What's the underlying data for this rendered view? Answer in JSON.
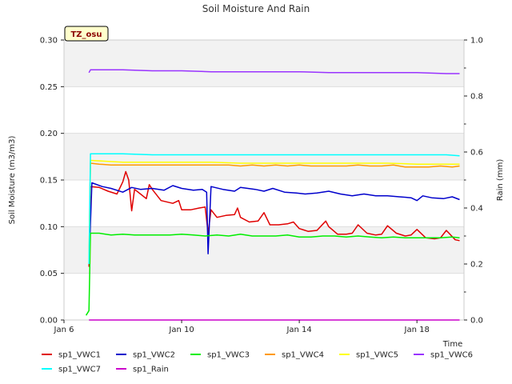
{
  "chart_data": {
    "type": "line",
    "title": "Soil Moisture And Rain",
    "badge": "TZ_osu",
    "xlabel": "Time",
    "ylabel": "Soil Moisture (m3/m3)",
    "y2label": "Rain (mm)",
    "xlim": [
      6,
      19.6
    ],
    "ylim": [
      0,
      0.3
    ],
    "y2lim": [
      0,
      1.0
    ],
    "x_ticks": [
      {
        "value": 6,
        "label": "Jan 6"
      },
      {
        "value": 10,
        "label": "Jan 10"
      },
      {
        "value": 14,
        "label": "Jan 14"
      },
      {
        "value": 18,
        "label": "Jan 18"
      }
    ],
    "y_ticks": [
      {
        "value": 0.0,
        "label": "0.00"
      },
      {
        "value": 0.05,
        "label": "0.05"
      },
      {
        "value": 0.1,
        "label": "0.10"
      },
      {
        "value": 0.15,
        "label": "0.15"
      },
      {
        "value": 0.2,
        "label": "0.20"
      },
      {
        "value": 0.25,
        "label": "0.25"
      },
      {
        "value": 0.3,
        "label": "0.30"
      }
    ],
    "y2_ticks": [
      {
        "value": 0.0,
        "label": "0.0"
      },
      {
        "value": 0.2,
        "label": "0.2"
      },
      {
        "value": 0.4,
        "label": "0.4"
      },
      {
        "value": 0.6,
        "label": "0.6"
      },
      {
        "value": 0.8,
        "label": "0.8"
      },
      {
        "value": 1.0,
        "label": "1.0"
      }
    ],
    "grid": true,
    "legend_position": "bottom",
    "series": [
      {
        "name": "sp1_VWC1",
        "color": "#e00000",
        "axis": "left",
        "x": [
          6.85,
          6.9,
          7.2,
          7.5,
          7.8,
          8.0,
          8.1,
          8.2,
          8.3,
          8.4,
          8.6,
          8.8,
          8.9,
          9.0,
          9.3,
          9.7,
          9.9,
          10.0,
          10.3,
          10.6,
          10.8,
          10.9,
          11.0,
          11.2,
          11.5,
          11.8,
          11.9,
          12.0,
          12.3,
          12.6,
          12.8,
          13.0,
          13.3,
          13.6,
          13.8,
          14.0,
          14.3,
          14.6,
          14.9,
          15.0,
          15.3,
          15.6,
          15.8,
          16.0,
          16.3,
          16.6,
          16.8,
          17.0,
          17.3,
          17.6,
          17.8,
          18.0,
          18.3,
          18.6,
          18.8,
          19.0,
          19.3,
          19.45
        ],
        "y": [
          0.057,
          0.143,
          0.142,
          0.138,
          0.135,
          0.148,
          0.159,
          0.15,
          0.117,
          0.14,
          0.135,
          0.13,
          0.145,
          0.14,
          0.128,
          0.125,
          0.128,
          0.118,
          0.118,
          0.12,
          0.121,
          0.093,
          0.118,
          0.11,
          0.112,
          0.113,
          0.12,
          0.11,
          0.105,
          0.106,
          0.115,
          0.102,
          0.102,
          0.103,
          0.105,
          0.098,
          0.095,
          0.096,
          0.106,
          0.1,
          0.092,
          0.092,
          0.093,
          0.102,
          0.093,
          0.091,
          0.092,
          0.101,
          0.093,
          0.09,
          0.091,
          0.097,
          0.088,
          0.087,
          0.088,
          0.096,
          0.086,
          0.085
        ]
      },
      {
        "name": "sp1_VWC2",
        "color": "#0000cc",
        "axis": "left",
        "x": [
          6.85,
          6.95,
          7.3,
          7.6,
          8.0,
          8.3,
          8.6,
          9.0,
          9.4,
          9.7,
          10.0,
          10.4,
          10.7,
          10.85,
          10.9,
          11.0,
          11.4,
          11.8,
          12.0,
          12.5,
          12.8,
          13.1,
          13.5,
          13.9,
          14.2,
          14.6,
          15.0,
          15.4,
          15.8,
          16.2,
          16.6,
          17.0,
          17.4,
          17.8,
          18.0,
          18.2,
          18.5,
          18.9,
          19.2,
          19.45
        ],
        "y": [
          0.06,
          0.147,
          0.143,
          0.141,
          0.137,
          0.142,
          0.14,
          0.141,
          0.139,
          0.144,
          0.141,
          0.139,
          0.14,
          0.137,
          0.071,
          0.143,
          0.14,
          0.138,
          0.142,
          0.14,
          0.138,
          0.141,
          0.137,
          0.136,
          0.135,
          0.136,
          0.138,
          0.135,
          0.133,
          0.135,
          0.133,
          0.133,
          0.132,
          0.131,
          0.128,
          0.133,
          0.131,
          0.13,
          0.132,
          0.129
        ]
      },
      {
        "name": "sp1_VWC3",
        "color": "#00ee00",
        "axis": "left",
        "x": [
          6.75,
          6.85,
          6.9,
          7.2,
          7.6,
          8.0,
          8.4,
          8.8,
          9.2,
          9.6,
          10.0,
          10.4,
          10.8,
          11.2,
          11.6,
          12.0,
          12.4,
          12.8,
          13.2,
          13.6,
          14.0,
          14.4,
          14.8,
          15.2,
          15.6,
          16.0,
          16.4,
          16.8,
          17.2,
          17.6,
          18.0,
          18.4,
          18.8,
          19.2,
          19.45
        ],
        "y": [
          0.005,
          0.01,
          0.093,
          0.093,
          0.091,
          0.092,
          0.091,
          0.091,
          0.091,
          0.091,
          0.092,
          0.091,
          0.09,
          0.091,
          0.09,
          0.092,
          0.09,
          0.09,
          0.09,
          0.091,
          0.089,
          0.089,
          0.09,
          0.09,
          0.089,
          0.09,
          0.089,
          0.088,
          0.089,
          0.088,
          0.088,
          0.088,
          0.088,
          0.089,
          0.088
        ]
      },
      {
        "name": "sp1_VWC4",
        "color": "#ff9900",
        "axis": "left",
        "x": [
          6.85,
          6.9,
          7.2,
          7.6,
          8.0,
          8.4,
          8.8,
          9.2,
          9.6,
          10.0,
          10.4,
          10.8,
          11.2,
          11.6,
          12.0,
          12.4,
          12.8,
          13.2,
          13.6,
          14.0,
          14.4,
          14.8,
          15.2,
          15.6,
          16.0,
          16.4,
          16.8,
          17.2,
          17.6,
          18.0,
          18.4,
          18.8,
          19.2,
          19.45
        ],
        "y": [
          0.06,
          0.168,
          0.167,
          0.166,
          0.166,
          0.166,
          0.166,
          0.166,
          0.166,
          0.166,
          0.166,
          0.166,
          0.166,
          0.166,
          0.165,
          0.166,
          0.165,
          0.166,
          0.165,
          0.166,
          0.165,
          0.165,
          0.165,
          0.165,
          0.166,
          0.165,
          0.165,
          0.166,
          0.164,
          0.164,
          0.164,
          0.165,
          0.164,
          0.165
        ]
      },
      {
        "name": "sp1_VWC5",
        "color": "#ffff00",
        "axis": "left",
        "x": [
          6.85,
          6.9,
          7.5,
          8.0,
          9.0,
          10.0,
          11.0,
          12.0,
          13.0,
          14.0,
          15.0,
          16.0,
          17.0,
          18.0,
          19.0,
          19.45
        ],
        "y": [
          0.062,
          0.171,
          0.17,
          0.169,
          0.169,
          0.169,
          0.169,
          0.168,
          0.168,
          0.168,
          0.168,
          0.168,
          0.168,
          0.167,
          0.167,
          0.167
        ]
      },
      {
        "name": "sp1_VWC6",
        "color": "#9933ff",
        "axis": "left",
        "x": [
          6.85,
          6.9,
          7.5,
          8.0,
          9.0,
          10.0,
          11.0,
          12.0,
          13.0,
          14.0,
          15.0,
          16.0,
          17.0,
          18.0,
          19.0,
          19.45
        ],
        "y": [
          0.265,
          0.268,
          0.268,
          0.268,
          0.267,
          0.267,
          0.266,
          0.266,
          0.266,
          0.266,
          0.265,
          0.265,
          0.265,
          0.265,
          0.264,
          0.264
        ]
      },
      {
        "name": "sp1_VWC7",
        "color": "#00ffff",
        "axis": "left",
        "x": [
          6.85,
          6.9,
          7.3,
          8.0,
          9.0,
          10.0,
          11.0,
          12.0,
          13.0,
          14.0,
          15.0,
          16.0,
          17.0,
          18.0,
          19.0,
          19.45
        ],
        "y": [
          0.06,
          0.178,
          0.178,
          0.178,
          0.177,
          0.177,
          0.177,
          0.177,
          0.177,
          0.177,
          0.177,
          0.177,
          0.177,
          0.177,
          0.177,
          0.176
        ]
      },
      {
        "name": "sp1_Rain",
        "color": "#cc00cc",
        "axis": "right",
        "x": [
          6.85,
          19.45
        ],
        "y": [
          0.0,
          0.0
        ]
      }
    ]
  }
}
